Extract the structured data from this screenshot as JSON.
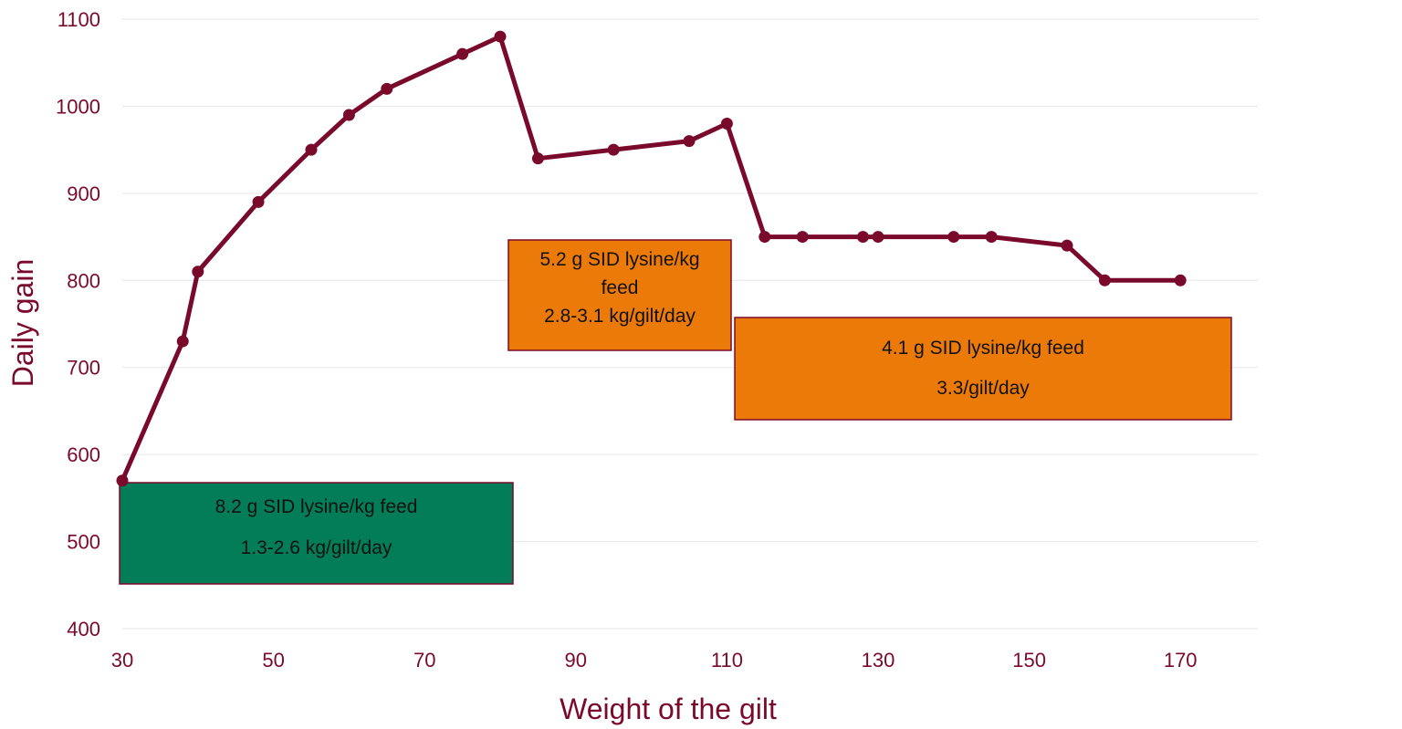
{
  "chart_data": {
    "type": "line",
    "xlabel": "Weight of the gilt",
    "ylabel": "Daily gain",
    "xlim": [
      30,
      180
    ],
    "ylim": [
      400,
      1100
    ],
    "x_ticks": [
      30,
      50,
      70,
      90,
      110,
      130,
      150,
      170
    ],
    "y_ticks": [
      400,
      500,
      600,
      700,
      800,
      900,
      1000,
      1100
    ],
    "grid": "horizontal",
    "series": [
      {
        "color": "#7a0a2b",
        "x": [
          30,
          38,
          40,
          48,
          55,
          60,
          65,
          75,
          80,
          85,
          95,
          105,
          110,
          115,
          120,
          128,
          130,
          140,
          145,
          155,
          160,
          170
        ],
        "y": [
          570,
          730,
          810,
          890,
          950,
          990,
          1020,
          1060,
          1080,
          940,
          950,
          960,
          980,
          850,
          850,
          850,
          850,
          850,
          850,
          840,
          800,
          800
        ]
      }
    ],
    "annotations": [
      {
        "id": "green-box",
        "color": "#027d58",
        "lines": [
          "8.2 g SID lysine/kg feed",
          "1.3-2.6 kg/gilt/day"
        ]
      },
      {
        "id": "orange-box-1",
        "color": "#ec7a08",
        "lines": [
          "5.2 g SID lysine/kg",
          "feed",
          "2.8-3.1 kg/gilt/day"
        ]
      },
      {
        "id": "orange-box-2",
        "color": "#ec7a08",
        "lines": [
          "4.1 g SID lysine/kg feed",
          "3.3/gilt/day"
        ]
      }
    ]
  }
}
